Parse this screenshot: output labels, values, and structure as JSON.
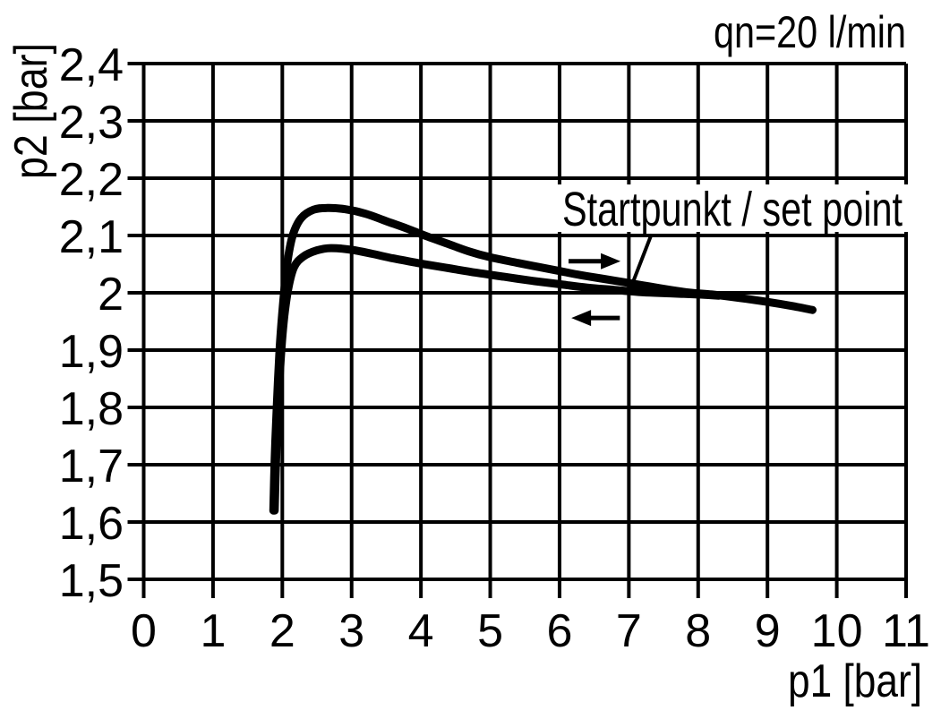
{
  "chart_data": {
    "type": "line",
    "title": "qn=20 l/min",
    "xlabel": "p1 [bar]",
    "ylabel": "p2 [bar]",
    "xlim": [
      0,
      11
    ],
    "ylim": [
      1.5,
      2.4
    ],
    "grid": true,
    "legend": "none",
    "background": "#ffffff",
    "ink_color": "#000000",
    "x_ticks": [
      {
        "value": 0,
        "label": "0"
      },
      {
        "value": 1,
        "label": "1"
      },
      {
        "value": 2,
        "label": "2"
      },
      {
        "value": 3,
        "label": "3"
      },
      {
        "value": 4,
        "label": "4"
      },
      {
        "value": 5,
        "label": "5"
      },
      {
        "value": 6,
        "label": "6"
      },
      {
        "value": 7,
        "label": "7"
      },
      {
        "value": 8,
        "label": "8"
      },
      {
        "value": 9,
        "label": "9"
      },
      {
        "value": 10,
        "label": "10"
      },
      {
        "value": 11,
        "label": "11"
      }
    ],
    "y_ticks": [
      {
        "value": 1.5,
        "label": "1,5"
      },
      {
        "value": 1.6,
        "label": "1,6"
      },
      {
        "value": 1.7,
        "label": "1,7"
      },
      {
        "value": 1.8,
        "label": "1,8"
      },
      {
        "value": 1.9,
        "label": "1,9"
      },
      {
        "value": 2.0,
        "label": "2"
      },
      {
        "value": 2.1,
        "label": "2,1"
      },
      {
        "value": 2.2,
        "label": "2,2"
      },
      {
        "value": 2.3,
        "label": "2,3"
      },
      {
        "value": 2.4,
        "label": "2,4"
      }
    ],
    "series": [
      {
        "name": "p1 increasing (arrow right)",
        "x": [
          1.87,
          1.89,
          1.92,
          1.96,
          2.01,
          2.07,
          2.15,
          2.27,
          2.45,
          2.65,
          2.9,
          3.2,
          3.5,
          3.8,
          4.1,
          4.4,
          4.7,
          5.0,
          5.4,
          5.7,
          6.0,
          6.3,
          6.6,
          7.0,
          7.3,
          7.6,
          7.9,
          8.2,
          8.6,
          9.0,
          9.35,
          9.65
        ],
        "y": [
          1.62,
          1.71,
          1.8,
          1.9,
          1.98,
          2.05,
          2.1,
          2.13,
          2.145,
          2.148,
          2.146,
          2.138,
          2.125,
          2.112,
          2.098,
          2.085,
          2.072,
          2.062,
          2.052,
          2.045,
          2.038,
          2.031,
          2.025,
          2.017,
          2.011,
          2.005,
          2.0,
          1.997,
          1.991,
          1.984,
          1.977,
          1.97
        ]
      },
      {
        "name": "p1 decreasing (arrow left)",
        "x": [
          1.89,
          1.91,
          1.94,
          1.98,
          2.03,
          2.09,
          2.17,
          2.3,
          2.5,
          2.7,
          3.0,
          3.3,
          3.6,
          4.0,
          4.4,
          4.8,
          5.2,
          5.6,
          6.0,
          6.4,
          6.8,
          7.2,
          7.6,
          8.0,
          8.3
        ],
        "y": [
          1.62,
          1.71,
          1.8,
          1.89,
          1.96,
          2.01,
          2.045,
          2.063,
          2.074,
          2.078,
          2.075,
          2.068,
          2.06,
          2.051,
          2.043,
          2.035,
          2.028,
          2.021,
          2.015,
          2.009,
          2.005,
          2.001,
          1.999,
          1.997,
          1.995
        ]
      }
    ],
    "annotations": {
      "set_point": {
        "label": "Startpunkt / set point",
        "x": 7.0,
        "y": 2.0,
        "label_anchor_x": 7.32,
        "label_anchor_y": 2.1
      },
      "arrows": [
        {
          "direction": "right",
          "x_tail": 6.13,
          "x_tip": 6.88,
          "y": 2.055
        },
        {
          "direction": "left",
          "x_tail": 6.87,
          "x_tip": 6.17,
          "y": 1.956
        }
      ]
    }
  }
}
